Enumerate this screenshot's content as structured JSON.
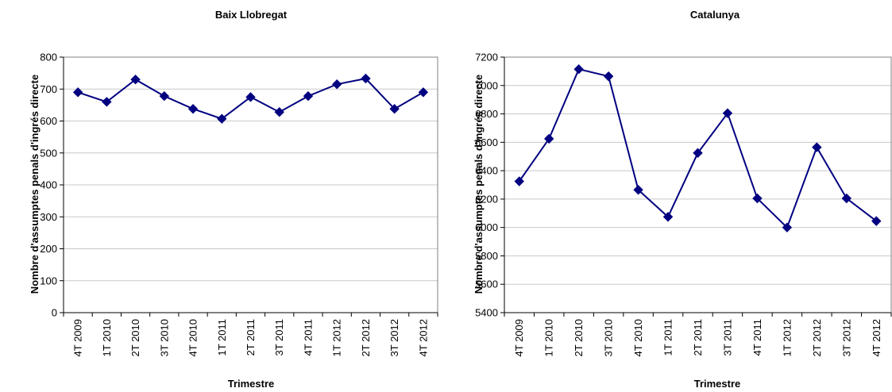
{
  "chart_data": [
    {
      "type": "line",
      "title": "Baix Llobregat",
      "xlabel": "Trimestre",
      "ylabel": "Nombre d'assumptes penals d'ingrés directe",
      "categories": [
        "4T 2009",
        "1T 2010",
        "2T 2010",
        "3T 2010",
        "4T 2010",
        "1T 2011",
        "2T 2011",
        "3T 2011",
        "4T 2011",
        "1T 2012",
        "2T 2012",
        "3T 2012",
        "4T 2012"
      ],
      "ylim": [
        0,
        800
      ],
      "yticks": [
        0,
        100,
        200,
        300,
        400,
        500,
        600,
        700,
        800
      ],
      "grid": true,
      "series": [
        {
          "values": [
            690,
            660,
            730,
            678,
            638,
            607,
            675,
            628,
            678,
            715,
            733,
            638,
            690
          ]
        }
      ],
      "color": "#000080"
    },
    {
      "type": "line",
      "title": "Catalunya",
      "xlabel": "Trimestre",
      "ylabel": "Nombre d'assumptes penals d'ingrés directe",
      "categories": [
        "4T 2009",
        "1T 2010",
        "2T 2010",
        "3T 2010",
        "4T 2010",
        "1T 2011",
        "2T 2011",
        "3T 2011",
        "4T 2011",
        "1T 2012",
        "2T 2012",
        "3T 2012",
        "4T 2012"
      ],
      "ylim": [
        5400,
        7200
      ],
      "yticks": [
        5400,
        5600,
        5800,
        6000,
        6200,
        6400,
        6600,
        6800,
        7000,
        7200
      ],
      "grid": true,
      "series": [
        {
          "values": [
            6325,
            6625,
            7115,
            7065,
            6265,
            6075,
            6525,
            6805,
            6205,
            6000,
            6565,
            6205,
            6045
          ]
        }
      ],
      "color": "#000080"
    }
  ]
}
